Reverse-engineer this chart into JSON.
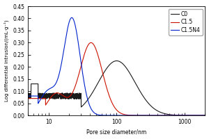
{
  "xlabel": "Pore size diameter/nm",
  "ylabel": "Log differential intrusion/(mL·g⁻¹)",
  "xlim_log": [
    5,
    2000
  ],
  "ylim": [
    0.0,
    0.45
  ],
  "yticks": [
    0.0,
    0.05,
    0.1,
    0.15,
    0.2,
    0.25,
    0.3,
    0.35,
    0.4,
    0.45
  ],
  "xticks": [
    10,
    100,
    1000
  ],
  "legend": [
    "C0",
    "C1.5",
    "C1.5N4"
  ],
  "colors": {
    "C0": "#1a1a1a",
    "C1.5": "#cc1100",
    "C1.5N4": "#0022cc"
  },
  "linewidth": 0.8,
  "figsize": [
    3.0,
    2.0
  ],
  "dpi": 100
}
